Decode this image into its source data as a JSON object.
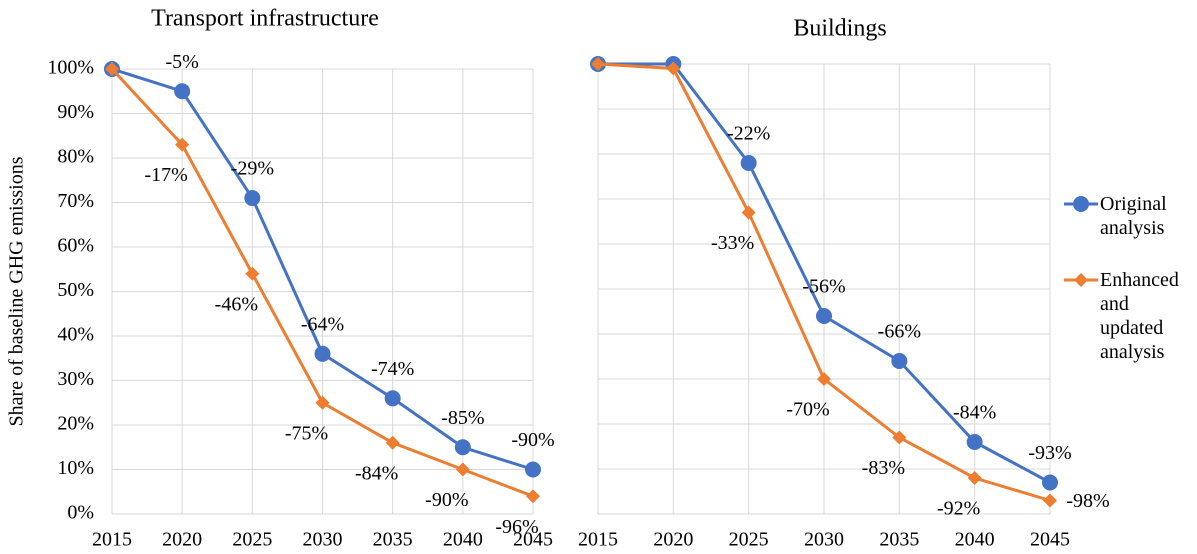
{
  "chart_data": [
    {
      "type": "line",
      "title": "Transport infrastructure",
      "y_label": "Share of baseline GHG emissions",
      "x": [
        2015,
        2020,
        2025,
        2030,
        2035,
        2040,
        2045
      ],
      "xlim": [
        2015,
        2045
      ],
      "xticks": [
        2015,
        2020,
        2025,
        2030,
        2035,
        2040,
        2045
      ],
      "ylim": [
        0,
        100
      ],
      "yticks": [
        {
          "value": 0,
          "label": "0%"
        },
        {
          "value": 10,
          "label": "10%"
        },
        {
          "value": 20,
          "label": "20%"
        },
        {
          "value": 30,
          "label": "30%"
        },
        {
          "value": 40,
          "label": "40%"
        },
        {
          "value": 50,
          "label": "50%"
        },
        {
          "value": 60,
          "label": "60%"
        },
        {
          "value": 70,
          "label": "70%"
        },
        {
          "value": 80,
          "label": "80%"
        },
        {
          "value": 90,
          "label": "90%"
        },
        {
          "value": 100,
          "label": "100%"
        }
      ],
      "ytick_labels": true,
      "grid": true,
      "series": [
        {
          "name": "Original analysis",
          "color": "#4472c4",
          "marker": "circle",
          "values": [
            100,
            95,
            71,
            36,
            26,
            15,
            10
          ],
          "labels": [
            null,
            "-5%",
            "-29%",
            "-64%",
            "-74%",
            "-85%",
            "-90%"
          ]
        },
        {
          "name": "Enhanced and updated analysis",
          "color": "#ed7d31",
          "marker": "diamond",
          "values": [
            100,
            83,
            54,
            25,
            16,
            10,
            4
          ],
          "labels": [
            null,
            "-17%",
            "-46%",
            "-75%",
            "-84%",
            "-90%",
            "-96%"
          ]
        }
      ]
    },
    {
      "type": "line",
      "title": "Buildings",
      "x": [
        2015,
        2020,
        2025,
        2030,
        2035,
        2040,
        2045
      ],
      "xlim": [
        2015,
        2045
      ],
      "xticks": [
        2015,
        2020,
        2025,
        2030,
        2035,
        2040,
        2045
      ],
      "ylim": [
        0,
        100
      ],
      "yticks": [
        0,
        10,
        20,
        30,
        40,
        50,
        60,
        70,
        80,
        90,
        100
      ],
      "ytick_labels": false,
      "grid": true,
      "legend": "right",
      "series": [
        {
          "name": "Original analysis",
          "color": "#4472c4",
          "marker": "circle",
          "values": [
            100,
            100,
            78,
            44,
            34,
            16,
            7
          ],
          "labels": [
            null,
            null,
            "-22%",
            "-56%",
            "-66%",
            "-84%",
            "-93%"
          ]
        },
        {
          "name": "Enhanced and updated analysis",
          "color": "#ed7d31",
          "marker": "diamond",
          "values": [
            100,
            99,
            67,
            30,
            17,
            8,
            3
          ],
          "labels": [
            null,
            null,
            "-33%",
            "-70%",
            "-83%",
            "-92%",
            "-98%"
          ]
        }
      ]
    }
  ]
}
